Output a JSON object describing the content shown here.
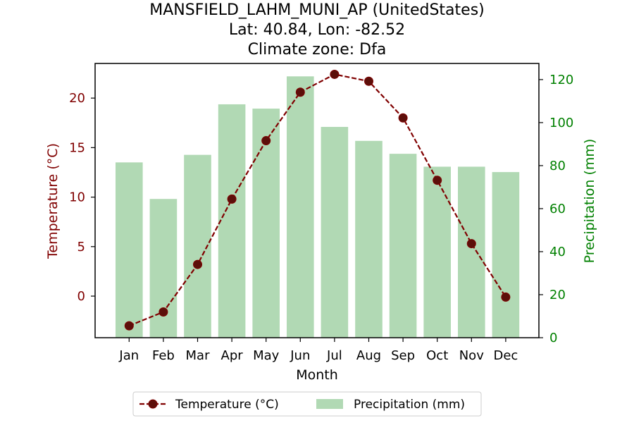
{
  "chart_data": {
    "type": "bar+line",
    "title": [
      "MANSFIELD_LAHM_MUNI_AP (UnitedStates)",
      "Lat: 40.84, Lon: -82.52",
      "Climate zone: Dfa"
    ],
    "xlabel": "Month",
    "categories": [
      "Jan",
      "Feb",
      "Mar",
      "Apr",
      "May",
      "Jun",
      "Jul",
      "Aug",
      "Sep",
      "Oct",
      "Nov",
      "Dec"
    ],
    "temperature": {
      "name": "Temperature (°C)",
      "axis_label": "Temperature (°C)",
      "values": [
        -3.0,
        -1.6,
        3.2,
        9.8,
        15.7,
        20.6,
        22.4,
        21.7,
        18.0,
        11.7,
        5.3,
        -0.1
      ],
      "ylim": [
        -4.2,
        23.5
      ],
      "ticks": [
        0,
        5,
        10,
        15,
        20
      ],
      "color": "#800000",
      "marker_color": "#5c0f0a"
    },
    "precipitation": {
      "name": "Precipitation (mm)",
      "axis_label": "Precipitation (mm)",
      "values": [
        81.5,
        64.5,
        85,
        108.5,
        106.5,
        121.5,
        98,
        91.5,
        85.5,
        79.5,
        79.5,
        77
      ],
      "ylim": [
        0,
        127.5
      ],
      "ticks": [
        0,
        20,
        40,
        60,
        80,
        100,
        120
      ],
      "color": "#b1d9b4",
      "axis_color": "#008000"
    },
    "legend": {
      "position": "bottom-center",
      "entries": [
        "Temperature (°C)",
        "Precipitation (mm)"
      ]
    },
    "grid": false
  }
}
